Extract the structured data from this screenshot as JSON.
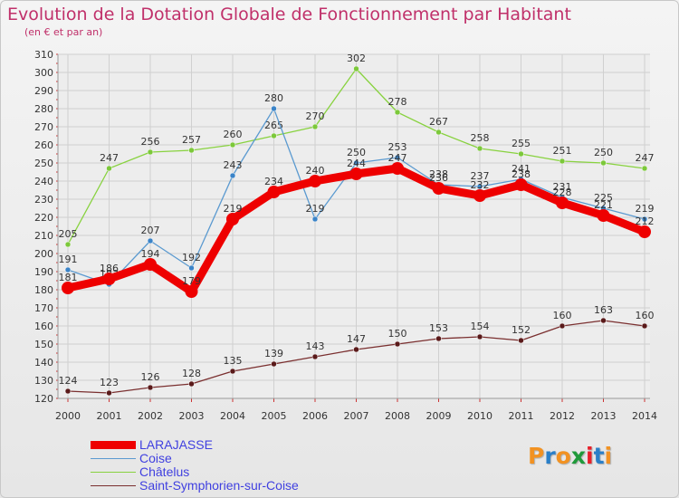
{
  "header": {
    "title": "Evolution de la Dotation Globale de Fonctionnement par Habitant",
    "subtitle": "(en € et par an)"
  },
  "logo": {
    "text": "Proxiti",
    "letters": [
      "P",
      "r",
      "o",
      "x",
      "i",
      "t",
      "i"
    ],
    "colors": [
      "#f29222",
      "#2a7fc8",
      "#f29222",
      "#1f9a3a",
      "#e8202a",
      "#2a7fc8",
      "#f29222"
    ]
  },
  "chart_data": {
    "type": "line",
    "title": "Evolution de la Dotation Globale de Fonctionnement par Habitant",
    "subtitle": "(en € et par an)",
    "x": [
      "2000",
      "2001",
      "2002",
      "2003",
      "2004",
      "2005",
      "2006",
      "2007",
      "2008",
      "2009",
      "2010",
      "2011",
      "2012",
      "2013",
      "2014"
    ],
    "ylim": [
      120,
      310
    ],
    "yticks": [
      120,
      130,
      140,
      150,
      160,
      170,
      180,
      190,
      200,
      210,
      220,
      230,
      240,
      250,
      260,
      270,
      280,
      290,
      300,
      310
    ],
    "grid": true,
    "legend_position": "bottom-left",
    "series": [
      {
        "name": "Châtelus",
        "color": "#88d23f",
        "marker": "#7cc83a",
        "values": [
          205,
          247,
          256,
          257,
          260,
          265,
          270,
          302,
          278,
          267,
          258,
          255,
          251,
          250,
          247
        ],
        "labels": [
          "205",
          "247",
          "256",
          "257",
          "260",
          "265",
          "270",
          "302",
          "278",
          "267",
          "258",
          "255",
          "251",
          "250",
          "247"
        ]
      },
      {
        "name": "Coise",
        "color": "#5b9ad0",
        "marker": "#3b84c8",
        "values": [
          191,
          183,
          207,
          192,
          243,
          280,
          219,
          250,
          253,
          238,
          237,
          241,
          231,
          225,
          219
        ],
        "labels": [
          "191",
          "183",
          "207",
          "192",
          "243",
          "280",
          "219",
          "250",
          "253",
          "238",
          "237",
          "241",
          "231",
          "225",
          "219"
        ]
      },
      {
        "name": "Saint-Symphorien-sur-Coise",
        "color": "#7a2f2f",
        "marker": "#5a1a1a",
        "values": [
          124,
          123,
          126,
          128,
          135,
          139,
          143,
          147,
          150,
          153,
          154,
          152,
          160,
          163,
          160
        ],
        "labels": [
          "124",
          "123",
          "126",
          "128",
          "135",
          "139",
          "143",
          "147",
          "150",
          "153",
          "154",
          "152",
          "160",
          "163",
          "160"
        ]
      },
      {
        "name": "LARAJASSE",
        "color": "#ee0000",
        "marker": "#ee0000",
        "values": [
          181,
          186,
          194,
          179,
          219,
          234,
          240,
          244,
          247,
          236,
          232,
          238,
          228,
          221,
          212
        ],
        "labels": [
          "181",
          "186",
          "194",
          "179",
          "219",
          "234",
          "240",
          "244",
          "247",
          "236",
          "232",
          "238",
          "228",
          "221",
          "212"
        ]
      }
    ]
  }
}
